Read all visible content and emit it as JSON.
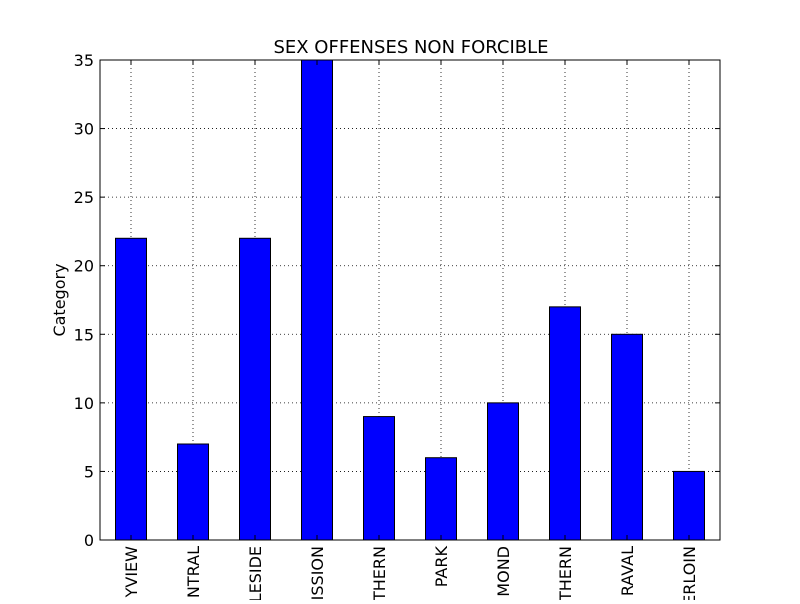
{
  "chart_data": {
    "type": "bar",
    "title": "SEX OFFENSES NON FORCIBLE",
    "xlabel": "",
    "ylabel": "Category",
    "categories": [
      "YVIEW",
      "NTRAL",
      "LESIDE",
      "ISSION",
      "THERN",
      "PARK",
      "MOND",
      "THERN",
      "RAVAL",
      "ERLOIN"
    ],
    "values": [
      22,
      7,
      22,
      35,
      9,
      6,
      10,
      17,
      15,
      5
    ],
    "ylim": [
      0,
      35
    ],
    "yticks": [
      0,
      5,
      10,
      15,
      20,
      25,
      30,
      35
    ],
    "grid": true,
    "legend": "none",
    "colors": {
      "bar": "#0000ff",
      "bar_edge": "#000000",
      "grid": "#000000",
      "axes": "#000000",
      "background": "#ffffff"
    }
  }
}
